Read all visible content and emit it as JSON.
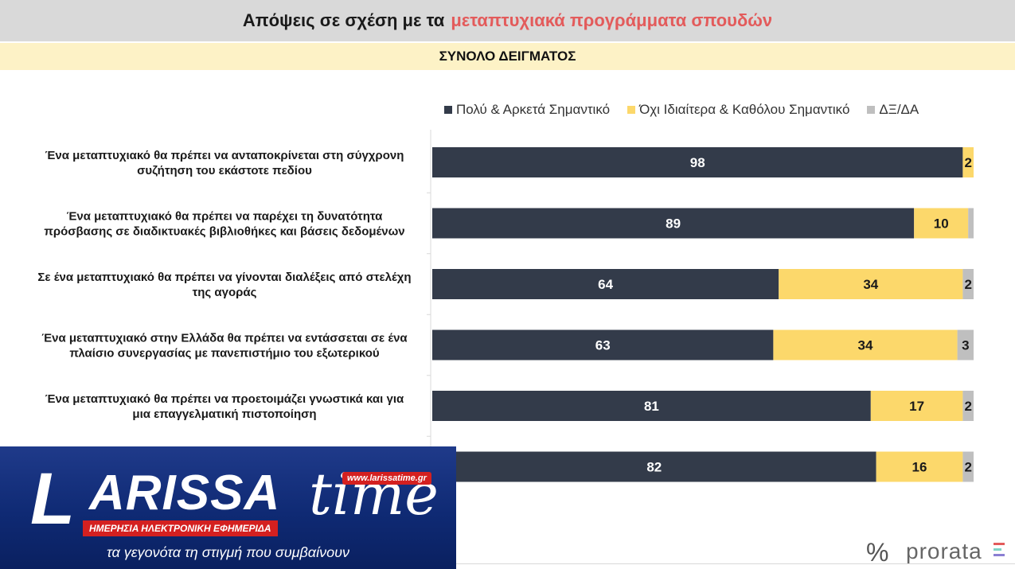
{
  "header": {
    "title_main": "Απόψεις σε σχέση με τα",
    "title_highlight": "μεταπτυχιακά προγράμματα σπουδών",
    "subtitle": "ΣΥΝΟΛΟ ΔΕΙΓΜΑΤΟΣ"
  },
  "legend": [
    {
      "label": "Πολύ & Αρκετά Σημαντικό",
      "color": "#333b4a"
    },
    {
      "label": "Όχι Ιδιαίτερα & Καθόλου Σημαντικό",
      "color": "#fcd86b"
    },
    {
      "label": "ΔΞ/ΔΑ",
      "color": "#bfbfbf"
    }
  ],
  "chart_data": {
    "type": "bar",
    "orientation": "horizontal",
    "stacked": true,
    "title": "Απόψεις σε σχέση με τα μεταπτυχιακά προγράμματα σπουδών",
    "subtitle": "ΣΥΝΟΛΟ ΔΕΙΓΜΑΤΟΣ",
    "xlim": [
      0,
      100
    ],
    "legend_position": "top-right",
    "categories": [
      [
        "Ένα μεταπτυχιακό θα πρέπει να ανταποκρίνεται στη σύγχρονη",
        "συζήτηση του εκάστοτε πεδίου"
      ],
      [
        "Ένα μεταπτυχιακό θα πρέπει να παρέχει τη δυνατότητα",
        "πρόσβασης σε διαδικτυακές βιβλιοθήκες και βάσεις δεδομένων"
      ],
      [
        "Σε ένα μεταπτυχιακό θα πρέπει να γίνονται διαλέξεις από στελέχη",
        "της αγοράς"
      ],
      [
        "Ένα μεταπτυχιακό στην Ελλάδα θα πρέπει να εντάσσεται σε ένα",
        "πλαίσιο συνεργασίας με πανεπιστήμιο του εξωτερικού"
      ],
      [
        "Ένα μεταπτυχιακό θα πρέπει να προετοιμάζει γνωστικά και για",
        "μια επαγγελματική πιστοποίηση"
      ],
      [
        "",
        ""
      ]
    ],
    "series": [
      {
        "name": "Πολύ & Αρκετά Σημαντικό",
        "color": "#333b4a",
        "label_color": "#ffffff",
        "values": [
          98,
          89,
          64,
          63,
          81,
          82
        ]
      },
      {
        "name": "Όχι Ιδιαίτερα & Καθόλου Σημαντικό",
        "color": "#fcd86b",
        "label_color": "#1a1a1a",
        "values": [
          2,
          10,
          34,
          34,
          17,
          16
        ]
      },
      {
        "name": "ΔΞ/ΔΑ",
        "color": "#bfbfbf",
        "label_color": "#1a1a1a",
        "values": [
          0,
          1,
          2,
          3,
          2,
          2
        ]
      }
    ],
    "data_labels": [
      [
        "98",
        "2",
        ""
      ],
      [
        "89",
        "10",
        ""
      ],
      [
        "64",
        "34",
        "2"
      ],
      [
        "63",
        "34",
        "3"
      ],
      [
        "81",
        "17",
        "2"
      ],
      [
        "82",
        "16",
        "2"
      ]
    ]
  },
  "logo": {
    "brand_letter": "L",
    "brand_word": "ARISSA",
    "brand_suffix": "time",
    "url": "www.larissatime.gr",
    "tagline": "ΗΜΕΡΗΣΙΑ ΗΛΕΚΤΡΟΝΙΚΗ ΕΦΗΜΕΡΙΔΑ",
    "slogan": "τα γεγονότα τη στιγμή που συμβαίνουν"
  },
  "footer": {
    "percent_symbol": "%",
    "brand": "prorata",
    "mark_colors": [
      "#e35b5b",
      "#7fd3c6",
      "#8a7fd3"
    ]
  }
}
